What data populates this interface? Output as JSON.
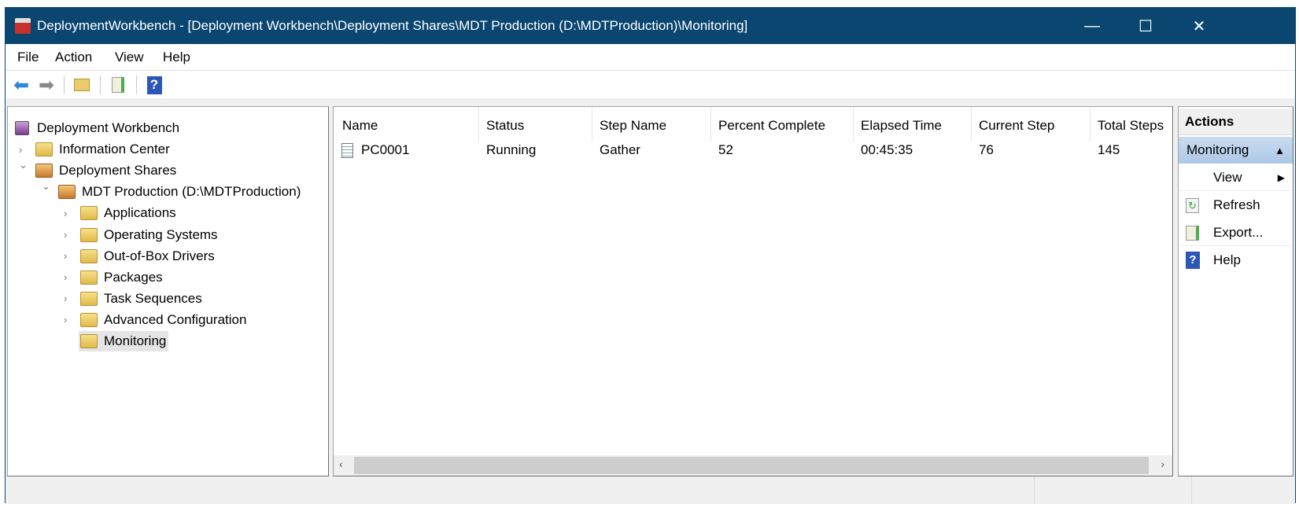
{
  "window": {
    "title": "DeploymentWorkbench - [Deployment Workbench\\Deployment Shares\\MDT Production (D:\\MDTProduction)\\Monitoring]",
    "controls": {
      "minimize": "—",
      "maximize": "☐",
      "close": "✕"
    }
  },
  "menu": {
    "items": [
      "File",
      "Action",
      "View",
      "Help"
    ]
  },
  "toolbar": {
    "buttons": [
      "back-icon",
      "forward-icon",
      "up-folder-icon",
      "export-icon",
      "help-icon"
    ],
    "help_glyph": "?"
  },
  "tree": {
    "items": [
      {
        "label": "Deployment Workbench",
        "level": 0,
        "expanded": null,
        "icon": "workbench-icon"
      },
      {
        "label": "Information Center",
        "level": 1,
        "expanded": false,
        "icon": "folder-info-icon"
      },
      {
        "label": "Deployment Shares",
        "level": 1,
        "expanded": true,
        "icon": "drive-folder-icon"
      },
      {
        "label": "MDT Production (D:\\MDTProduction)",
        "level": 2,
        "expanded": true,
        "icon": "drive-folder-icon"
      },
      {
        "label": "Applications",
        "level": 3,
        "expanded": false,
        "icon": "folder-icon"
      },
      {
        "label": "Operating Systems",
        "level": 3,
        "expanded": false,
        "icon": "folder-icon"
      },
      {
        "label": "Out-of-Box Drivers",
        "level": 3,
        "expanded": false,
        "icon": "folder-icon"
      },
      {
        "label": "Packages",
        "level": 3,
        "expanded": false,
        "icon": "folder-icon"
      },
      {
        "label": "Task Sequences",
        "level": 3,
        "expanded": false,
        "icon": "folder-icon"
      },
      {
        "label": "Advanced Configuration",
        "level": 3,
        "expanded": false,
        "icon": "folder-icon"
      },
      {
        "label": "Monitoring",
        "level": 3,
        "expanded": null,
        "icon": "folder-db-icon",
        "selected": true
      }
    ]
  },
  "list": {
    "columns": [
      "Name",
      "Status",
      "Step Name",
      "Percent Complete",
      "Elapsed Time",
      "Current Step",
      "Total Steps"
    ],
    "rows": [
      [
        "PC0001",
        "Running",
        "Gather",
        "52",
        "00:45:35",
        "76",
        "145"
      ]
    ]
  },
  "actions": {
    "title": "Actions",
    "section": "Monitoring",
    "items": [
      "View",
      "Refresh",
      "Export...",
      "Help"
    ]
  },
  "colors": {
    "titlebar": "#0b4670",
    "actions_section": "#b9d1ea"
  }
}
